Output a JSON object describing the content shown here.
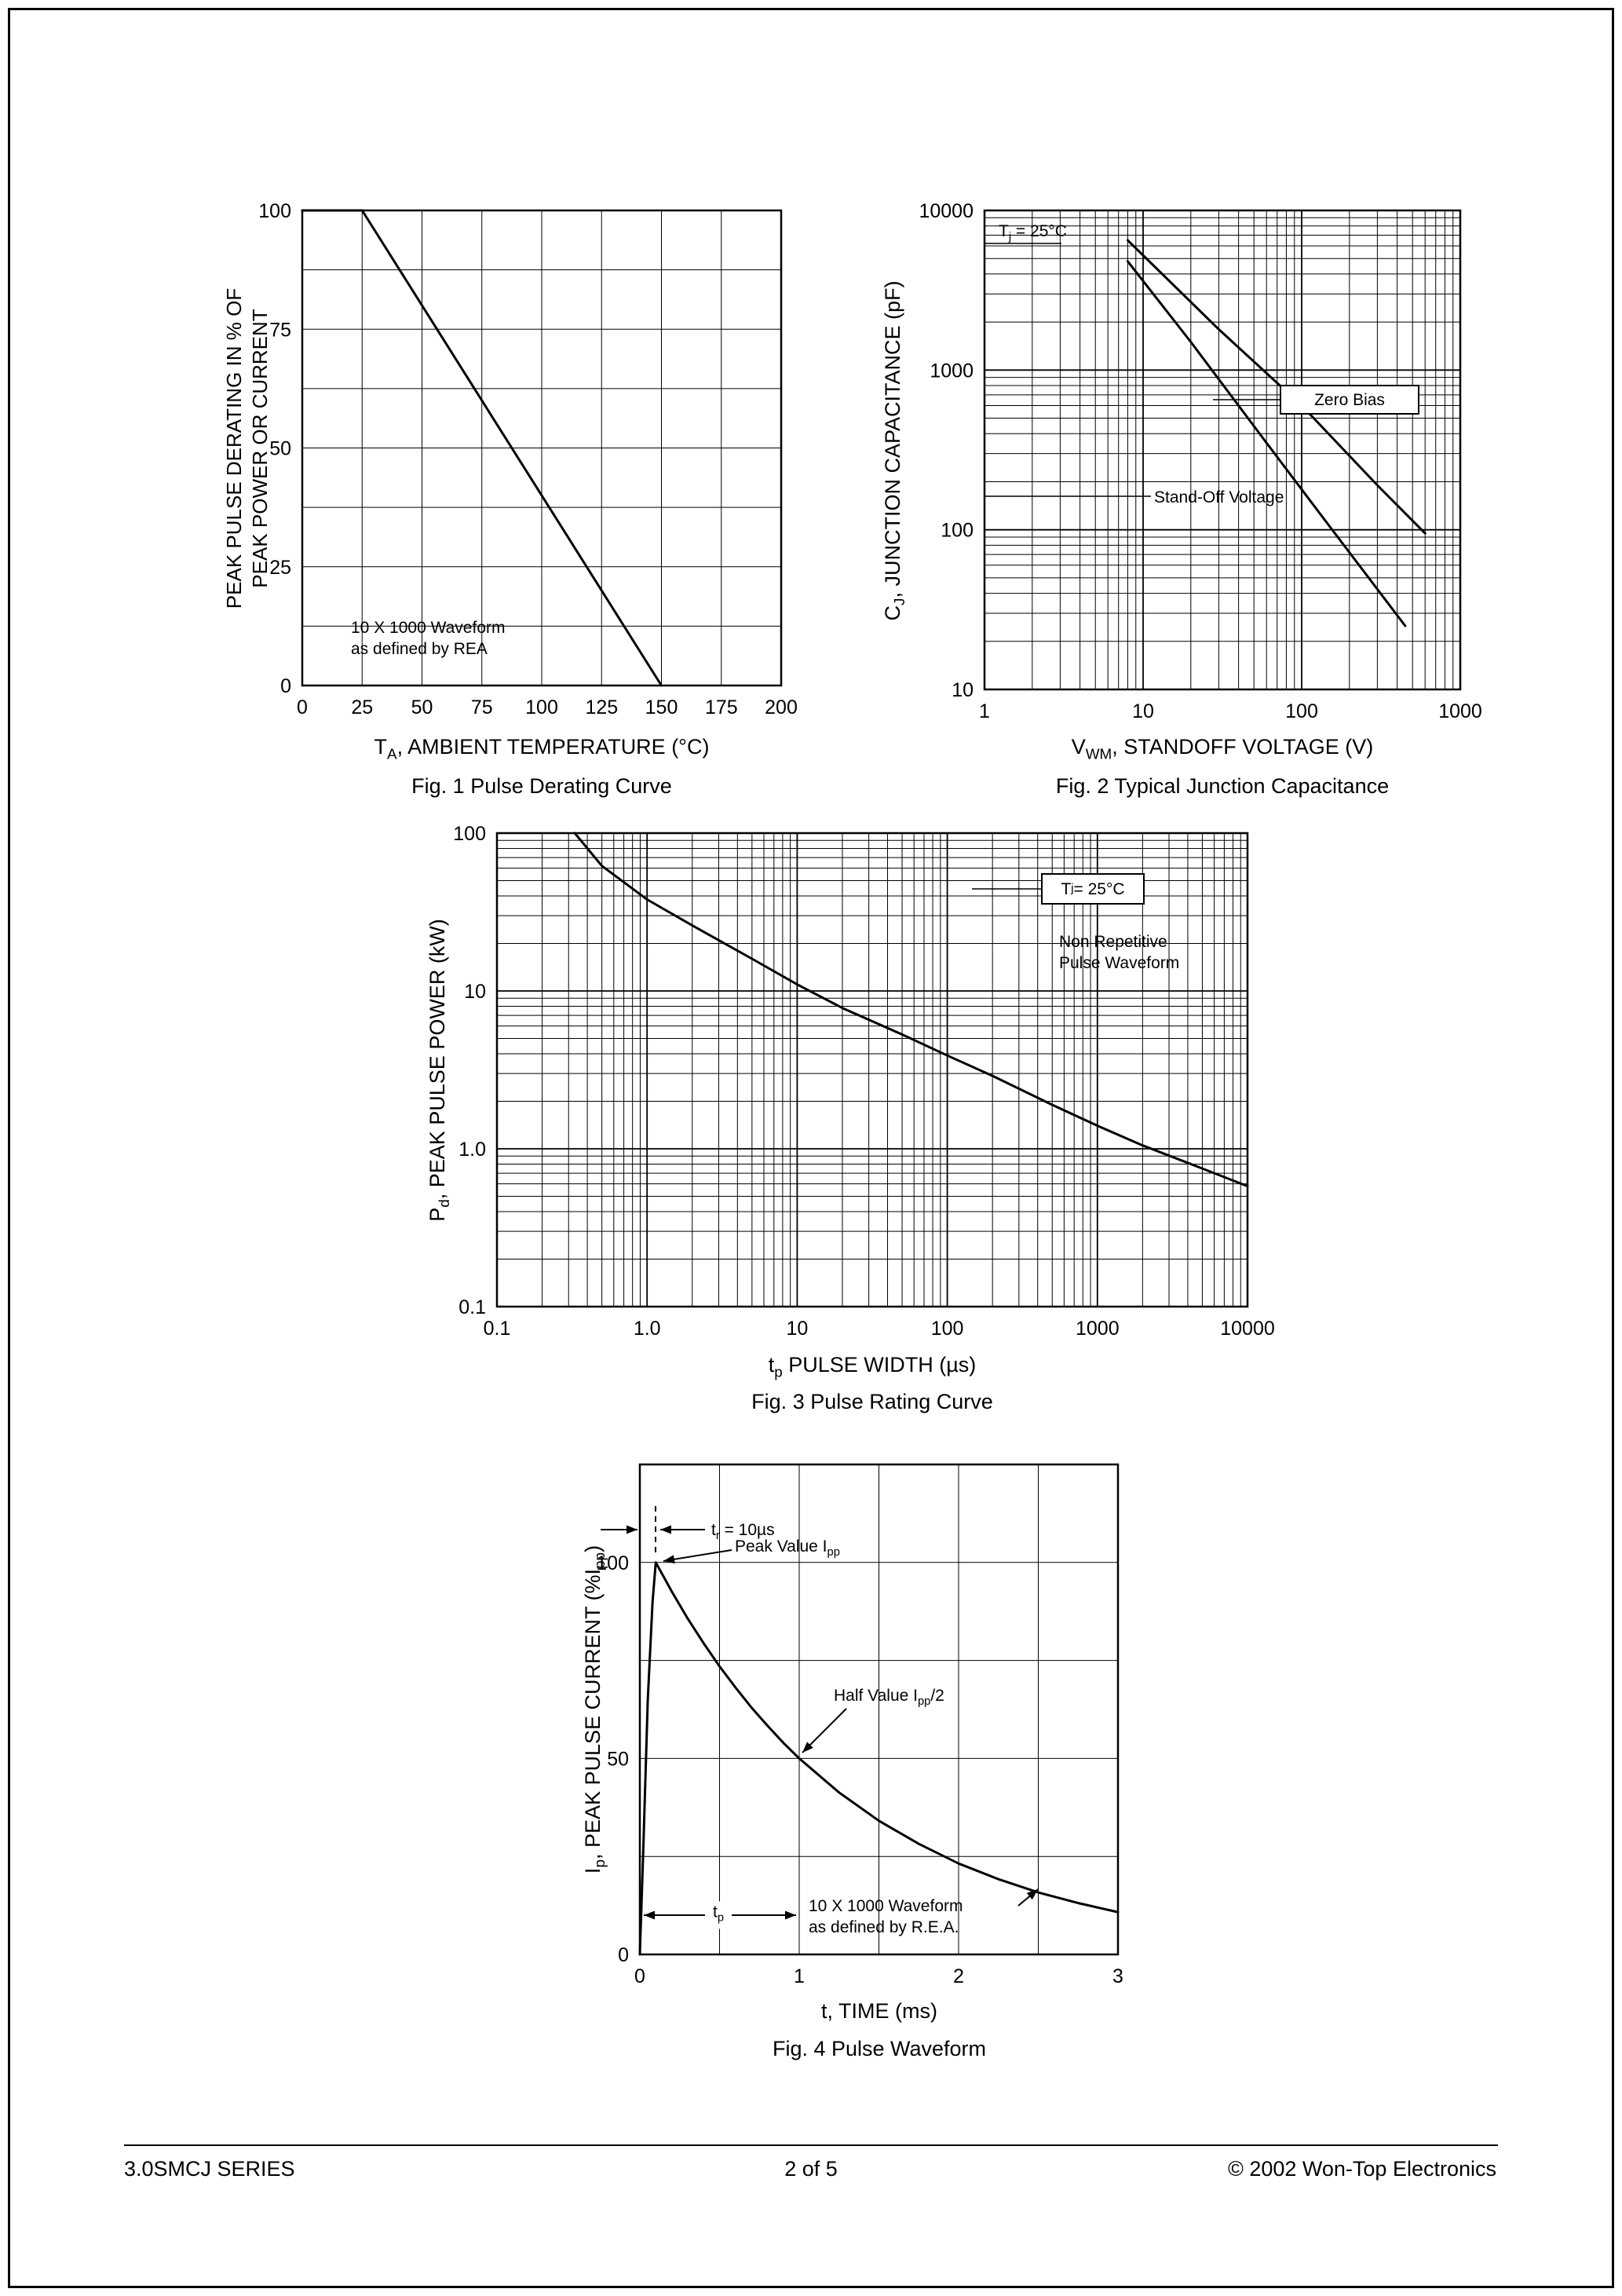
{
  "page": {
    "footer_left": "3.0SMCJ SERIES",
    "footer_center": "2  of  5",
    "footer_right": "© 2002 Won-Top Electronics"
  },
  "chart_data": [
    {
      "id": "fig1",
      "type": "line",
      "caption": "Fig. 1  Pulse Derating Curve",
      "xlabel": "T~A~, AMBIENT TEMPERATURE (°C)",
      "ylabel_lines": [
        "PEAK PULSE DERATING IN % OF",
        "PEAK POWER OR CURRENT"
      ],
      "annotation_lines": [
        "10 X 1000 Waveform",
        "as defined by REA"
      ],
      "x_axis": {
        "scale": "linear",
        "min": 0,
        "max": 200,
        "grid_step": 25,
        "ticks": [
          [
            0,
            "0"
          ],
          [
            25,
            "25"
          ],
          [
            50,
            "50"
          ],
          [
            75,
            "75"
          ],
          [
            100,
            "100"
          ],
          [
            125,
            "125"
          ],
          [
            150,
            "150"
          ],
          [
            175,
            "175"
          ],
          [
            200,
            "200"
          ]
        ]
      },
      "y_axis": {
        "scale": "linear",
        "min": 0,
        "max": 100,
        "grid_step": 12.5,
        "ticks": [
          [
            0,
            "0"
          ],
          [
            25,
            "25"
          ],
          [
            50,
            "50"
          ],
          [
            75,
            "75"
          ],
          [
            100,
            "100"
          ]
        ]
      },
      "series": [
        {
          "name": "derating-curve",
          "points": [
            [
              0,
              100
            ],
            [
              25,
              100
            ],
            [
              150,
              0
            ]
          ]
        }
      ]
    },
    {
      "id": "fig2",
      "type": "line",
      "caption": "Fig. 2  Typical Junction Capacitance",
      "xlabel": "V~WM~, STANDOFF VOLTAGE (V)",
      "ylabel": "C~J~, JUNCTION CAPACITANCE (pF)",
      "annotations": {
        "temp": "T~j~ = 25°C",
        "zero_bias": "Zero Bias",
        "standoff": "Stand-Off Voltage"
      },
      "x_axis": {
        "scale": "log",
        "min": 1,
        "max": 1000,
        "ticks": [
          [
            1,
            "1"
          ],
          [
            10,
            "10"
          ],
          [
            100,
            "100"
          ],
          [
            1000,
            "1000"
          ]
        ]
      },
      "y_axis": {
        "scale": "log",
        "min": 10,
        "max": 10000,
        "ticks": [
          [
            10,
            "10"
          ],
          [
            100,
            "100"
          ],
          [
            1000,
            "1000"
          ],
          [
            10000,
            "10000"
          ]
        ]
      },
      "series": [
        {
          "name": "zero-bias",
          "points": [
            [
              8,
              6500
            ],
            [
              30,
              1800
            ],
            [
              100,
              600
            ],
            [
              300,
              190
            ],
            [
              600,
              95
            ]
          ]
        },
        {
          "name": "stand-off-voltage",
          "points": [
            [
              8,
              4800
            ],
            [
              20,
              1500
            ],
            [
              60,
              350
            ],
            [
              150,
              105
            ],
            [
              450,
              25
            ]
          ]
        }
      ]
    },
    {
      "id": "fig3",
      "type": "line",
      "caption": "Fig. 3 Pulse Rating Curve",
      "xlabel": "t~p~ PULSE WIDTH (µs)",
      "ylabel": "P~d~, PEAK PULSE POWER (kW)",
      "annotations": {
        "temp": "T~j~ = 25°C",
        "nonrep_lines": [
          "Non Repetitive",
          "Pulse Waveform"
        ]
      },
      "x_axis": {
        "scale": "log",
        "min": 0.1,
        "max": 10000,
        "ticks": [
          [
            0.1,
            "0.1"
          ],
          [
            1,
            "1.0"
          ],
          [
            10,
            "10"
          ],
          [
            100,
            "100"
          ],
          [
            1000,
            "1000"
          ],
          [
            10000,
            "10000"
          ]
        ]
      },
      "y_axis": {
        "scale": "log",
        "min": 0.1,
        "max": 100,
        "ticks": [
          [
            0.1,
            "0.1"
          ],
          [
            1,
            "1.0"
          ],
          [
            10,
            "10"
          ],
          [
            100,
            "100"
          ]
        ]
      },
      "series": [
        {
          "name": "pulse-rating-curve",
          "points": [
            [
              0.33,
              100
            ],
            [
              0.5,
              62
            ],
            [
              1,
              38
            ],
            [
              2,
              26
            ],
            [
              5,
              16
            ],
            [
              10,
              11
            ],
            [
              20,
              7.8
            ],
            [
              50,
              5.3
            ],
            [
              100,
              3.9
            ],
            [
              200,
              2.9
            ],
            [
              500,
              1.9
            ],
            [
              1000,
              1.4
            ],
            [
              2000,
              1.05
            ],
            [
              5000,
              0.75
            ],
            [
              10000,
              0.58
            ]
          ]
        }
      ]
    },
    {
      "id": "fig4",
      "type": "line",
      "caption": "Fig. 4  Pulse Waveform",
      "xlabel": "t, TIME (ms)",
      "ylabel": "I~p~, PEAK PULSE CURRENT (%I~pp~)",
      "annotations": {
        "rise_time": "t~r~ = 10µs",
        "peak": "Peak Value I~pp~",
        "half": "Half Value I~pp~/2",
        "pulse_width": "t~p~",
        "wave_lines": [
          "10 X 1000 Waveform",
          "as defined by R.E.A."
        ]
      },
      "x_axis": {
        "scale": "linear",
        "min": 0,
        "max": 3,
        "grid_step": 0.5,
        "ticks": [
          [
            0,
            "0"
          ],
          [
            1,
            "1"
          ],
          [
            2,
            "2"
          ],
          [
            3,
            "3"
          ]
        ]
      },
      "y_axis": {
        "scale": "linear",
        "min": 0,
        "max": 125,
        "grid_step": 25,
        "grid_max": 100,
        "ticks": [
          [
            0,
            "0"
          ],
          [
            50,
            "50"
          ],
          [
            100,
            "100"
          ]
        ]
      },
      "series": [
        {
          "name": "pulse-waveform",
          "points": [
            [
              0,
              0
            ],
            [
              0.02,
              25
            ],
            [
              0.05,
              65
            ],
            [
              0.08,
              90
            ],
            [
              0.1,
              100
            ],
            [
              0.2,
              92.6
            ],
            [
              0.3,
              85.7
            ],
            [
              0.4,
              79.4
            ],
            [
              0.5,
              73.5
            ],
            [
              0.6,
              68.1
            ],
            [
              0.7,
              63.0
            ],
            [
              0.8,
              58.4
            ],
            [
              0.9,
              54.0
            ],
            [
              1.0,
              50.0
            ],
            [
              1.25,
              41.3
            ],
            [
              1.5,
              34.1
            ],
            [
              1.75,
              28.2
            ],
            [
              2.0,
              23.2
            ],
            [
              2.25,
              19.2
            ],
            [
              2.5,
              15.8
            ],
            [
              2.75,
              13.1
            ],
            [
              3.0,
              10.8
            ]
          ]
        }
      ]
    }
  ]
}
